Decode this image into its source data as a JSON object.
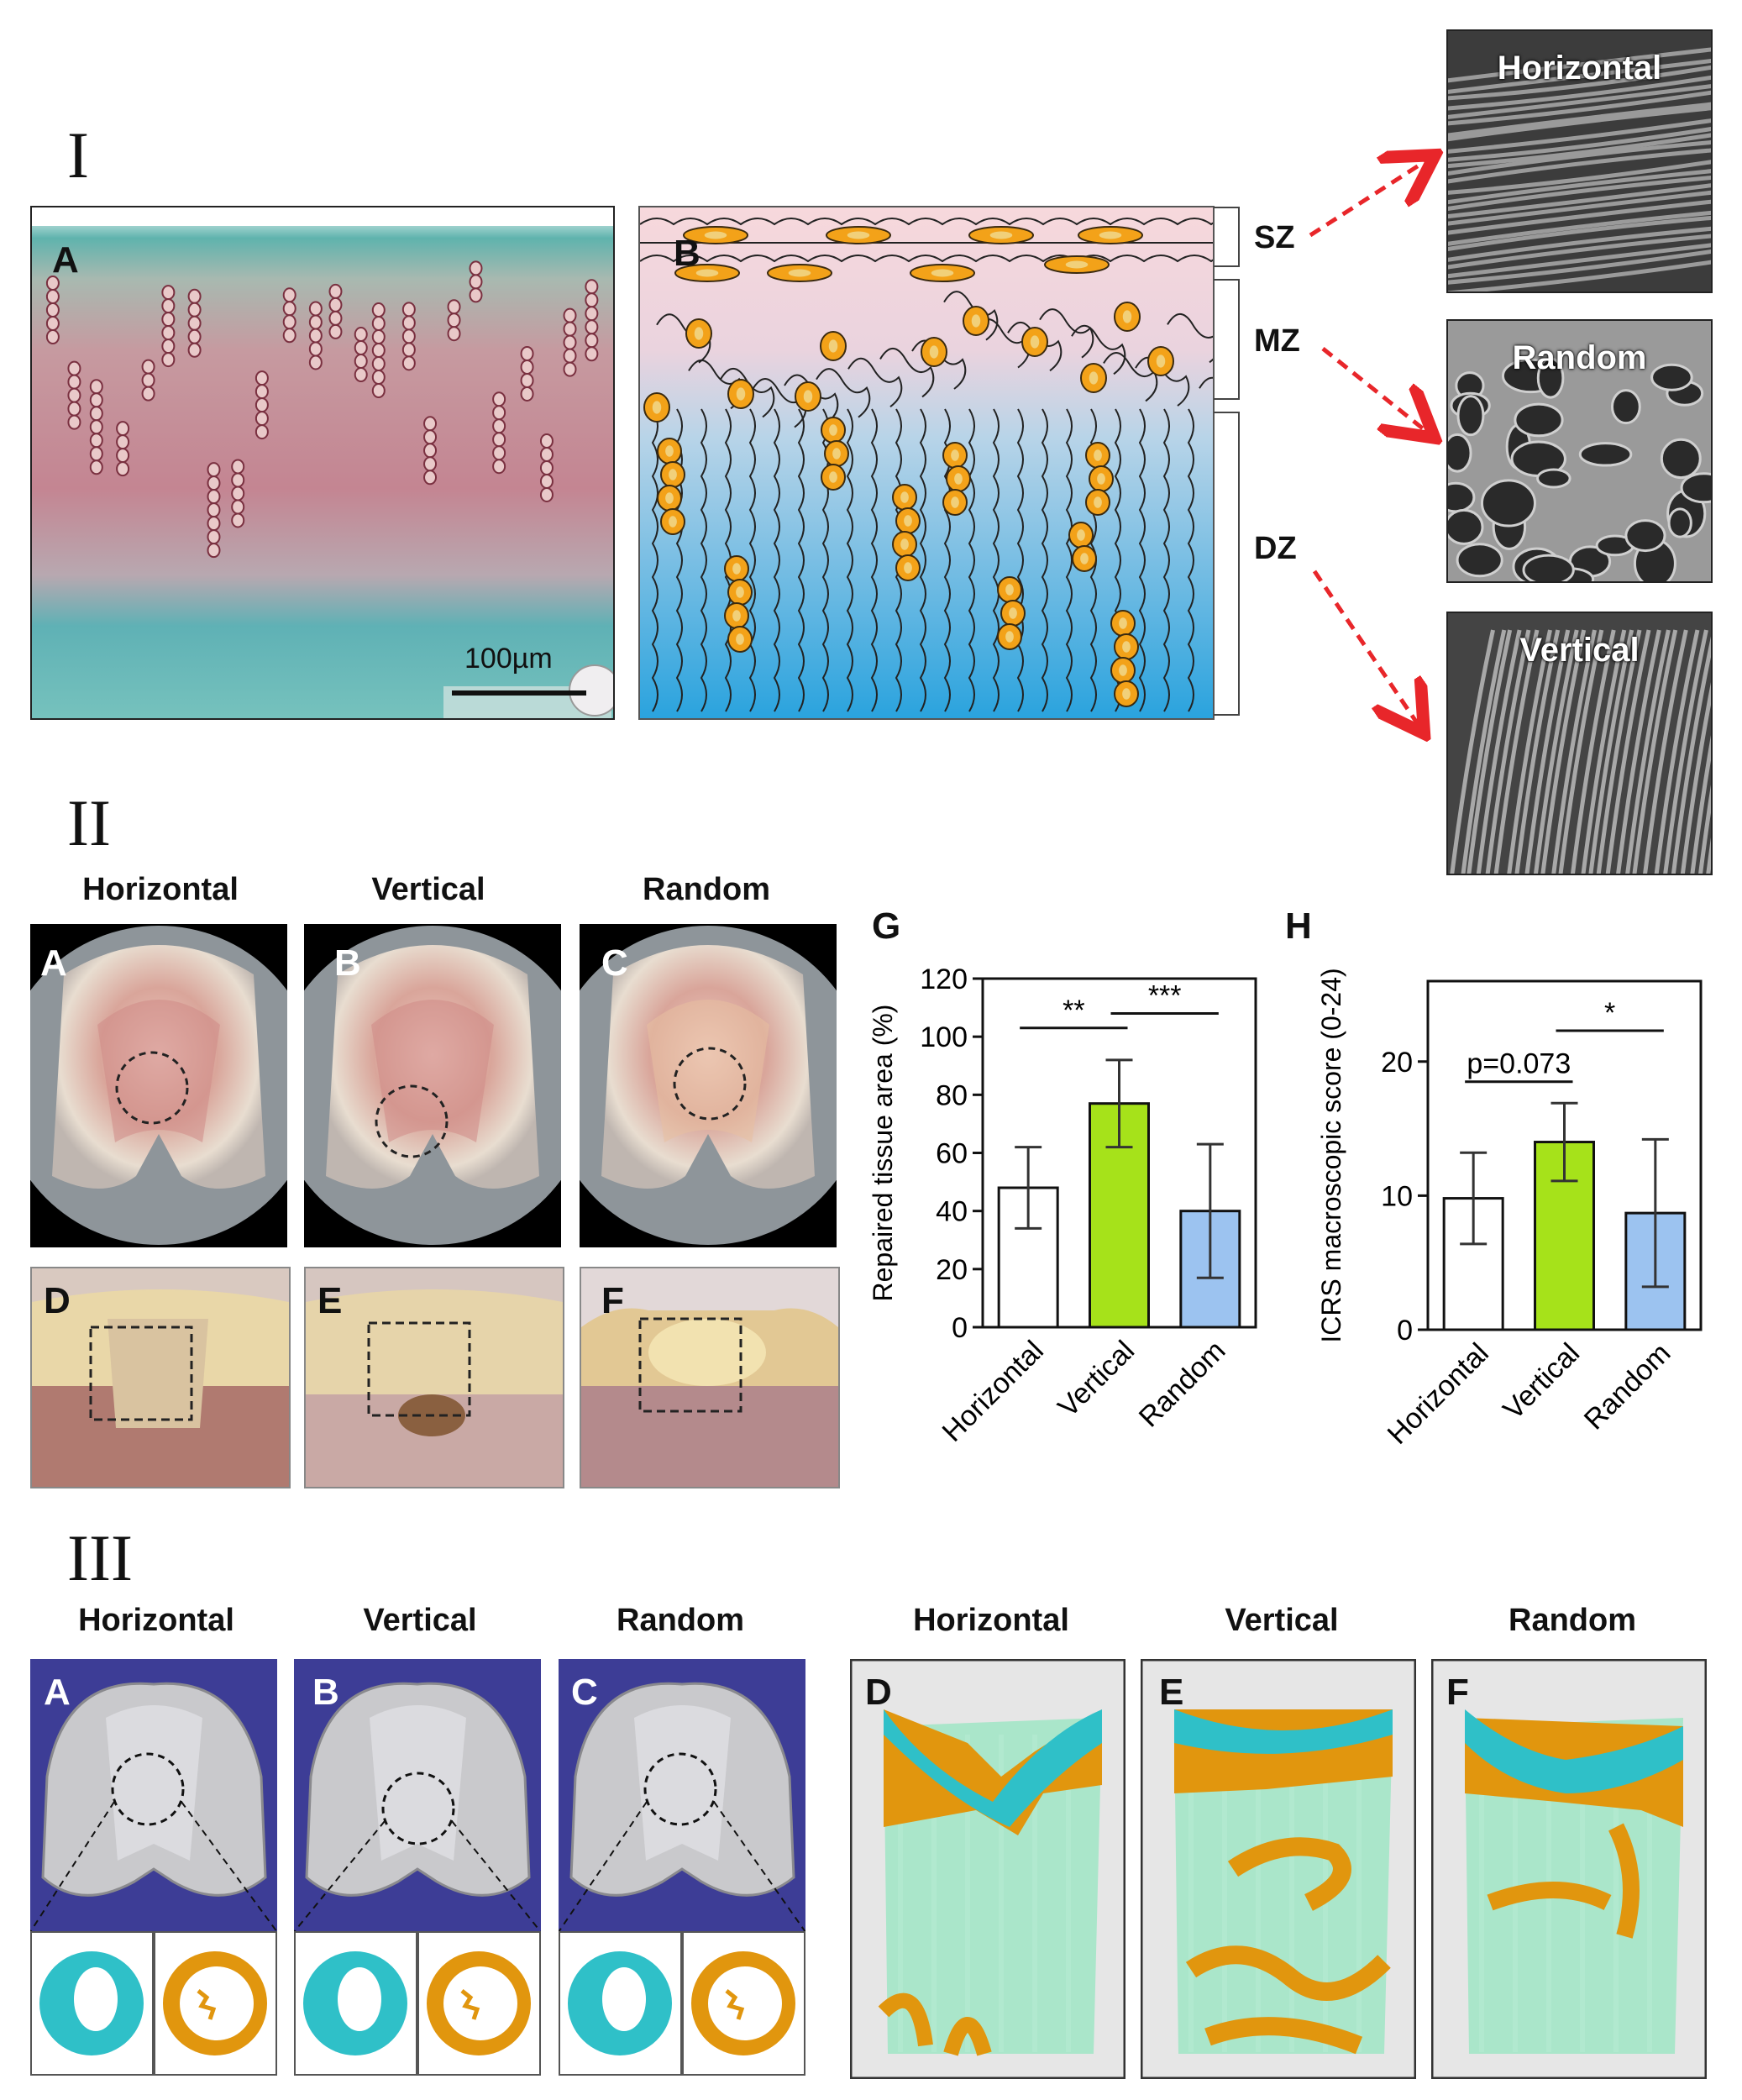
{
  "section_I": {
    "roman": "I",
    "panel_A_label": "A",
    "panel_B_label": "B",
    "scale_bar": "100µm",
    "zones": [
      "SZ",
      "MZ",
      "DZ"
    ],
    "sem_labels": [
      "Horizontal",
      "Random",
      "Vertical"
    ]
  },
  "section_II": {
    "roman": "II",
    "column_titles": [
      "Horizontal",
      "Vertical",
      "Random"
    ],
    "photo_labels": [
      "A",
      "B",
      "C",
      "D",
      "E",
      "F"
    ],
    "chart_G_label": "G",
    "chart_H_label": "H"
  },
  "section_III": {
    "roman": "III",
    "left_titles": [
      "Horizontal",
      "Vertical",
      "Random"
    ],
    "right_titles": [
      "Horizontal",
      "Vertical",
      "Random"
    ],
    "panel_labels": [
      "A",
      "B",
      "C",
      "D",
      "E",
      "F"
    ]
  },
  "colors": {
    "vertical_bar": "#a6e21a",
    "random_bar": "#9cc3f0",
    "horizontal_bar": "#ffffff",
    "micro_ct_blue": "#3d3d96",
    "cartilage_cyan": "#2fc0c8",
    "bone_orange": "#e1960e",
    "arrow_red": "#e8262a"
  },
  "chart_data": [
    {
      "type": "bar",
      "categories": [
        "Horizontal",
        "Vertical",
        "Random"
      ],
      "values": [
        48,
        77,
        40
      ],
      "errors": [
        14,
        15,
        23
      ],
      "ylabel": "Repaired tissue area (%)",
      "ylim": [
        0,
        120
      ],
      "yticks": [
        "0",
        "20",
        "40",
        "60",
        "80",
        "100",
        "120"
      ],
      "annotations": [
        "**",
        "***"
      ]
    },
    {
      "type": "bar",
      "categories": [
        "Horizontal",
        "Vertical",
        "Random"
      ],
      "values": [
        9.8,
        14.0,
        8.7
      ],
      "errors": [
        3.4,
        2.9,
        5.5
      ],
      "ylabel": "ICRS macroscopic score (0-24)",
      "ylim": [
        0,
        26
      ],
      "yticks": [
        "0",
        "10",
        "20"
      ],
      "annotations": [
        "p=0.073",
        "*"
      ]
    }
  ]
}
